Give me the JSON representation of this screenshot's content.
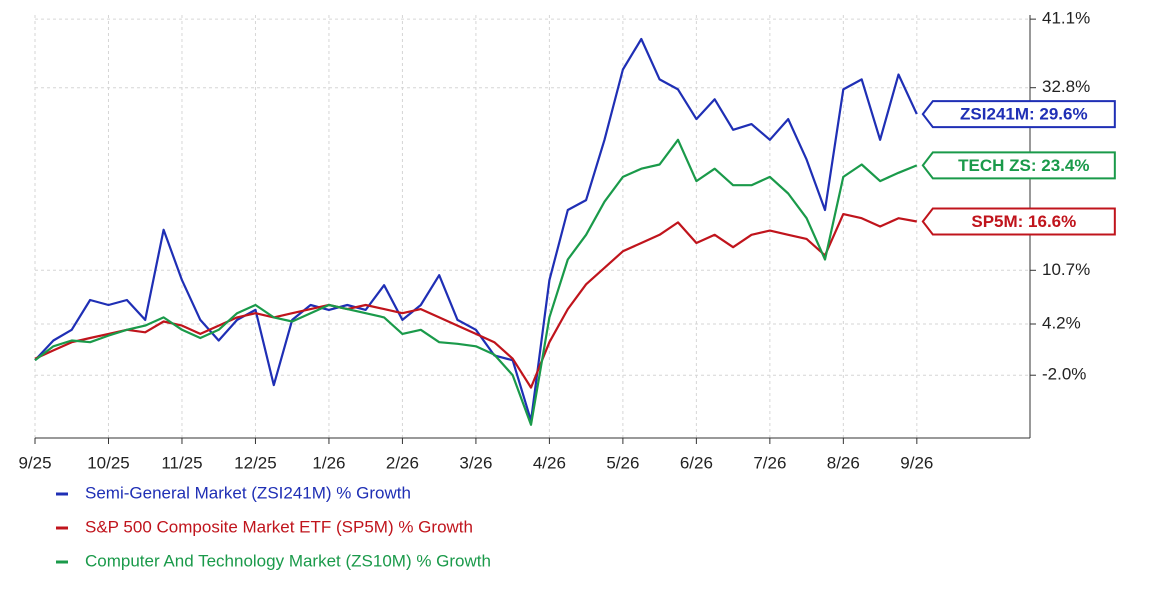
{
  "chart_data": {
    "type": "line",
    "x": [
      0,
      0.25,
      0.5,
      0.75,
      1,
      1.25,
      1.5,
      1.75,
      2,
      2.25,
      2.5,
      2.75,
      3,
      3.25,
      3.5,
      3.75,
      4,
      4.25,
      4.5,
      4.75,
      5,
      5.25,
      5.5,
      5.75,
      6,
      6.25,
      6.5,
      6.75,
      7,
      7.25,
      7.5,
      7.75,
      8,
      8.25,
      8.5,
      8.75,
      9,
      9.25,
      9.5,
      9.75,
      10,
      10.25,
      10.5,
      10.75,
      11,
      11.25,
      11.5,
      11.75,
      12
    ],
    "series": [
      {
        "name": "Semi-General Market (ZSI241M) % Growth",
        "label": "ZSI241M: 29.6%",
        "color": "#1f2fb5",
        "values": [
          -0.2,
          2.2,
          3.5,
          7.1,
          6.5,
          7.1,
          4.7,
          15.6,
          9.5,
          4.7,
          2.2,
          4.7,
          5.9,
          -3.2,
          4.7,
          6.5,
          5.9,
          6.5,
          5.9,
          8.9,
          4.7,
          6.5,
          10.1,
          4.7,
          3.5,
          0.4,
          -0.2,
          -7.5,
          9.5,
          18.0,
          19.2,
          26.5,
          35.0,
          38.7,
          33.8,
          32.6,
          29.0,
          31.4,
          27.7,
          28.4,
          26.5,
          29.0,
          24.1,
          18.0,
          32.6,
          33.8,
          26.5,
          34.4,
          29.6
        ]
      },
      {
        "name": "S&P 500 Composite Market ETF (SP5M) % Growth",
        "label": "SP5M: 16.6%",
        "color": "#c0141c",
        "values": [
          0.0,
          1.0,
          2.0,
          2.5,
          3.0,
          3.5,
          3.2,
          4.5,
          4.0,
          3.0,
          4.0,
          5.0,
          5.5,
          5.0,
          5.5,
          6.0,
          6.5,
          6.0,
          6.5,
          6.0,
          5.5,
          6.0,
          5.0,
          4.0,
          3.0,
          2.0,
          0.0,
          -3.5,
          2.0,
          6.0,
          9.0,
          11.0,
          13.0,
          14.0,
          15.0,
          16.5,
          14.0,
          15.0,
          13.5,
          15.0,
          15.5,
          15.0,
          14.5,
          12.5,
          17.5,
          17.0,
          16.0,
          17.0,
          16.6
        ]
      },
      {
        "name": "Computer And Technology Market (ZS10M) % Growth",
        "label": "TECH ZS: 23.4%",
        "color": "#1a9a4a",
        "values": [
          -0.2,
          1.5,
          2.2,
          2.0,
          2.8,
          3.5,
          4.0,
          5.0,
          3.5,
          2.5,
          3.5,
          5.5,
          6.5,
          5.0,
          4.5,
          5.5,
          6.5,
          6.0,
          5.5,
          5.0,
          3.0,
          3.5,
          2.0,
          1.8,
          1.5,
          0.5,
          -2.0,
          -8.0,
          5.0,
          12.0,
          15.0,
          19.0,
          22.0,
          23.0,
          23.5,
          26.5,
          21.5,
          23.0,
          21.0,
          21.0,
          22.0,
          20.0,
          17.0,
          12.0,
          22.0,
          23.5,
          21.5,
          22.5,
          23.4
        ]
      }
    ],
    "xlim": [
      0,
      13.54
    ],
    "xticks": [
      {
        "value": 0,
        "label": "9/25"
      },
      {
        "value": 1,
        "label": "10/25"
      },
      {
        "value": 2,
        "label": "11/25"
      },
      {
        "value": 3,
        "label": "12/25"
      },
      {
        "value": 4,
        "label": "1/26"
      },
      {
        "value": 5,
        "label": "2/26"
      },
      {
        "value": 6,
        "label": "3/26"
      },
      {
        "value": 7,
        "label": "4/26"
      },
      {
        "value": 8,
        "label": "5/26"
      },
      {
        "value": 9,
        "label": "6/26"
      },
      {
        "value": 10,
        "label": "7/26"
      },
      {
        "value": 11,
        "label": "8/26"
      },
      {
        "value": 12,
        "label": "9/26"
      }
    ],
    "ylim": [
      -9.6,
      41.6
    ],
    "yticks": [
      {
        "value": 41.1,
        "label": "41.1%"
      },
      {
        "value": 32.8,
        "label": "32.8%"
      },
      {
        "value": 10.7,
        "label": "10.7%"
      },
      {
        "value": 4.2,
        "label": "4.2%"
      },
      {
        "value": -2.0,
        "label": "-2.0%"
      }
    ],
    "grid": true
  }
}
